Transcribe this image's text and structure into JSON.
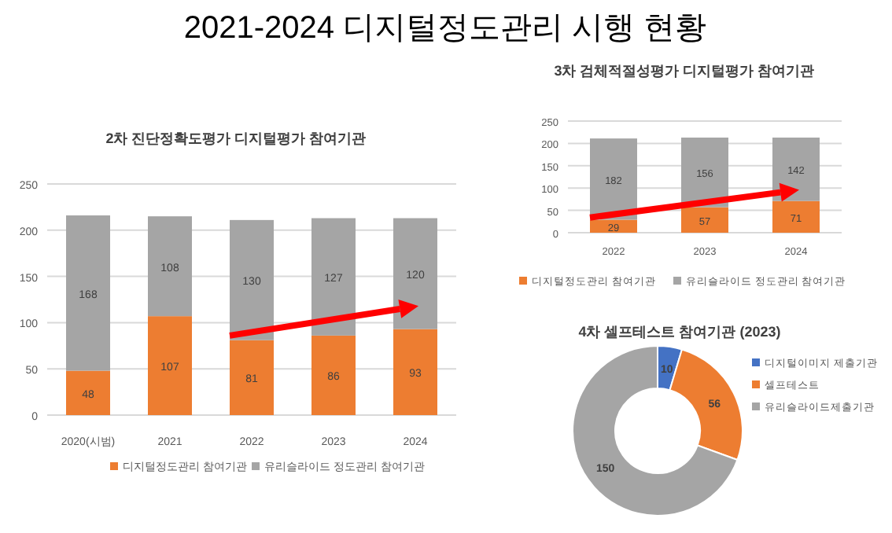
{
  "chart_data": [
    {
      "type": "bar",
      "stacked": true,
      "title": "2차 진단정확도평가 디지털평가 참여기관",
      "annotations": [
        "2021-2024 디지털정도관리 시행 현황"
      ],
      "categories": [
        "2020(시범)",
        "2021",
        "2022",
        "2023",
        "2024"
      ],
      "series": [
        {
          "name": "디지털정도관리 참여기관",
          "color": "#ed7d31",
          "values": [
            48,
            107,
            81,
            86,
            93
          ]
        },
        {
          "name": "유리슬라이드 정도관리 참여기관",
          "color": "#a5a5a5",
          "values": [
            168,
            108,
            130,
            127,
            120
          ]
        }
      ],
      "ylim": [
        0,
        250
      ],
      "yticks": [
        0,
        50,
        100,
        150,
        200,
        250
      ],
      "grid": "y",
      "legend": "bottom",
      "data_labels": true
    },
    {
      "type": "bar",
      "stacked": true,
      "title": "3차 검체적절성평가 디지털평가 참여기관",
      "categories": [
        "2022",
        "2023",
        "2024"
      ],
      "series": [
        {
          "name": "디지털정도관리 참여기관",
          "color": "#ed7d31",
          "values": [
            29,
            57,
            71
          ]
        },
        {
          "name": "유리슬라이드 정도관리 참여기관",
          "color": "#a5a5a5",
          "values": [
            182,
            156,
            142
          ]
        }
      ],
      "ylim": [
        0,
        250
      ],
      "yticks": [
        0,
        50,
        100,
        150,
        200,
        250
      ],
      "grid": "y",
      "legend": "bottom",
      "data_labels": true
    },
    {
      "type": "donut",
      "title": "4차 셀프테스트 참여기관 (2023)",
      "categories": [
        "디지털이미지 제출기관",
        "셀프테스트",
        "유리슬라이드제출기관"
      ],
      "values": [
        10,
        56,
        150
      ],
      "colors": [
        "#4472c4",
        "#ed7d31",
        "#a5a5a5"
      ],
      "legend": "right",
      "data_labels": true
    }
  ]
}
